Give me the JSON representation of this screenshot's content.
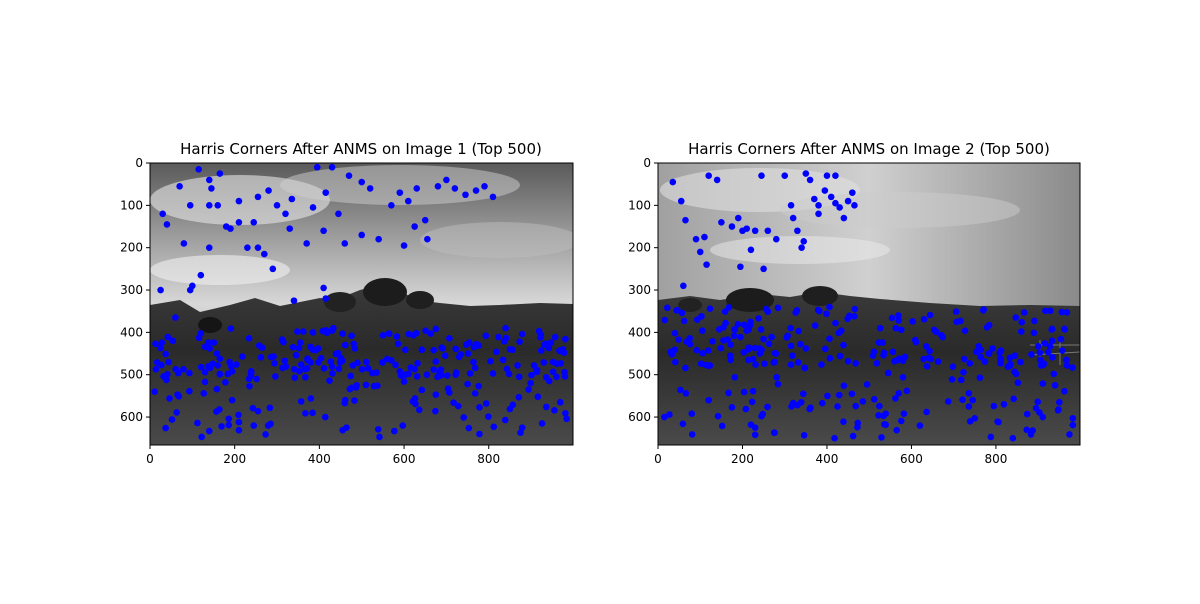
{
  "chart_data": [
    {
      "type": "scatter",
      "title": "Harris Corners After ANMS on Image 1 (Top 500)",
      "xlabel": "",
      "ylabel": "",
      "xlim": [
        0,
        999
      ],
      "ylim": [
        666,
        0
      ],
      "xticks": [
        0,
        200,
        400,
        600,
        800
      ],
      "yticks": [
        0,
        100,
        200,
        300,
        400,
        500,
        600
      ],
      "xtick_labels": [
        "0",
        "200",
        "400",
        "600",
        "800"
      ],
      "ytick_labels": [
        "0",
        "100",
        "200",
        "300",
        "400",
        "500",
        "600"
      ],
      "grid": false,
      "legend": "none",
      "background": "grayscale landscape photograph (sky with clouds, trees, grassy hillside)",
      "marker_color": "#0000ff",
      "points_note": "500 blue corner markers; dense band y≈400–650, scattered clusters in sky y≈20–300"
    },
    {
      "type": "scatter",
      "title": "Harris Corners After ANMS on Image 2 (Top 500)",
      "xlabel": "",
      "ylabel": "",
      "xlim": [
        0,
        999
      ],
      "ylim": [
        666,
        0
      ],
      "xticks": [
        0,
        200,
        400,
        600,
        800
      ],
      "yticks": [
        0,
        100,
        200,
        300,
        400,
        500,
        600
      ],
      "xtick_labels": [
        "0",
        "200",
        "400",
        "600",
        "800"
      ],
      "ytick_labels": [
        "0",
        "100",
        "200",
        "300",
        "400",
        "500",
        "600"
      ],
      "grid": false,
      "legend": "none",
      "background": "grayscale landscape photograph (sky with clouds, trees, grassy hillside, fence)",
      "marker_color": "#0000ff",
      "points_note": "500 blue corner markers; dense band y≈340–650, cluster in sky y≈20–210 near x≈0–470"
    }
  ]
}
